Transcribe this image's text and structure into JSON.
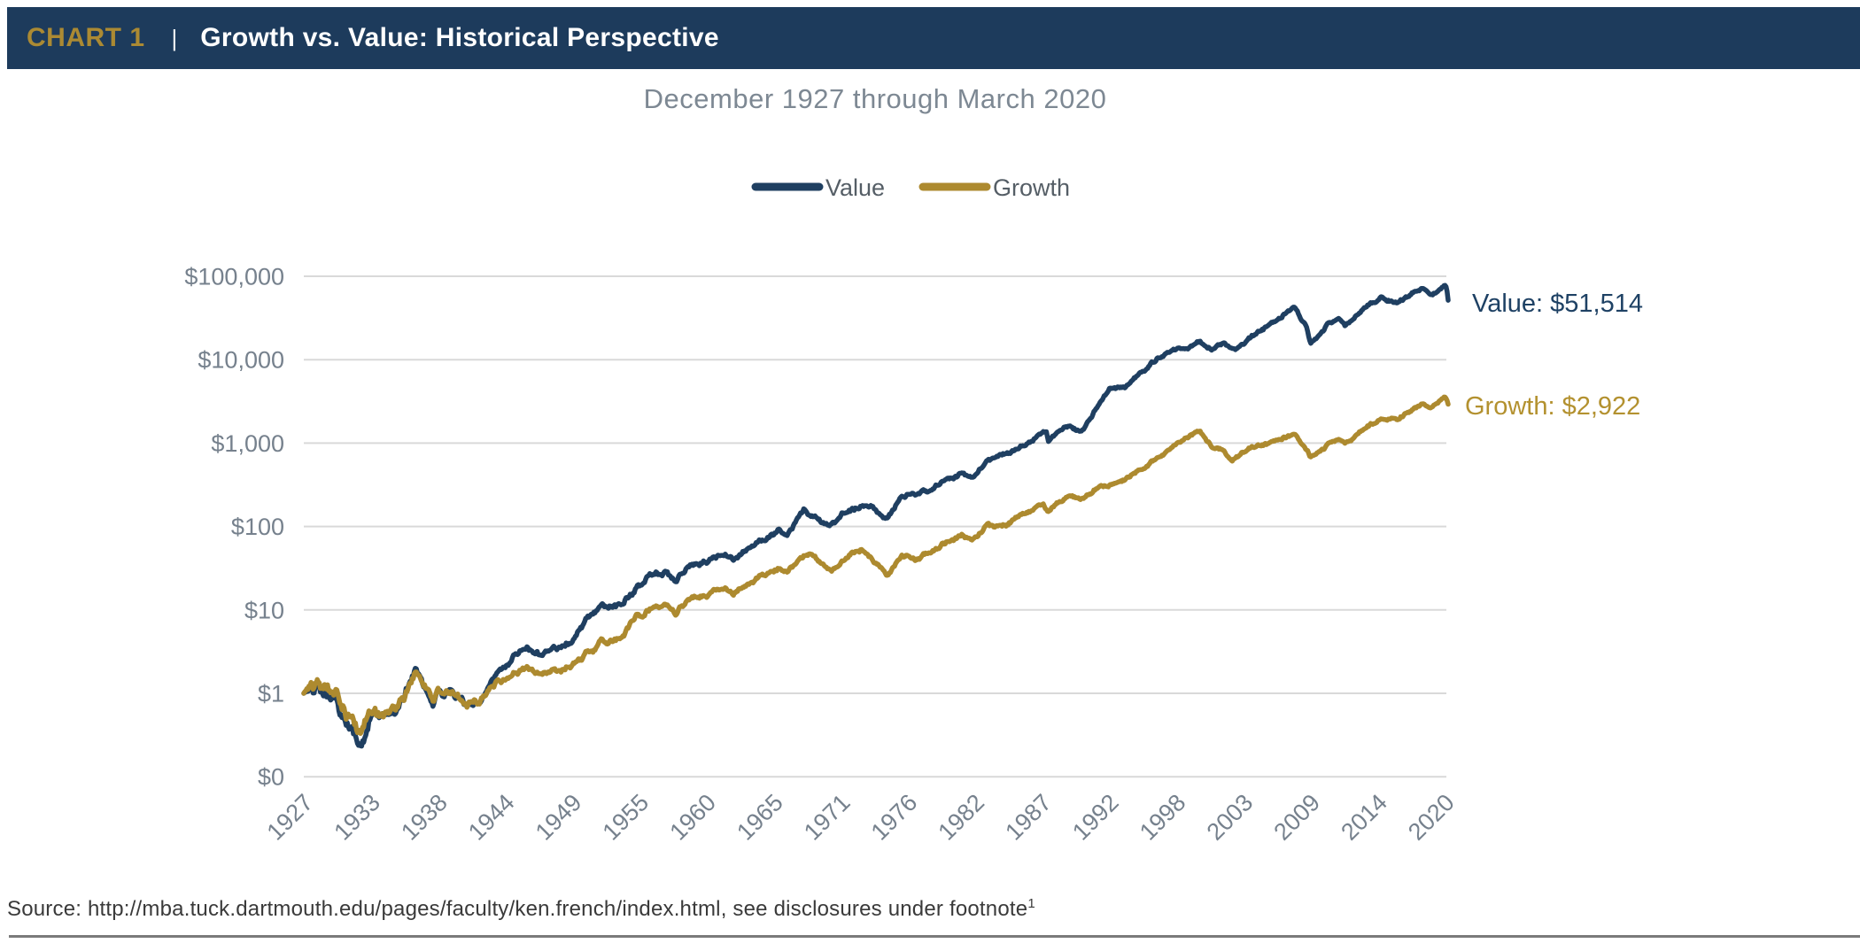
{
  "header": {
    "chart_label": "CHART 1",
    "separator": "|",
    "title": "Growth vs. Value: Historical Perspective"
  },
  "chart": {
    "title": "December 1927 through March 2020",
    "legend": [
      {
        "label": "Value",
        "color": "#1f3f61"
      },
      {
        "label": "Growth",
        "color": "#ad8a2f"
      }
    ],
    "end_labels": {
      "value": "Value: $51,514",
      "growth": "Growth: $2,922"
    }
  },
  "chart_data": {
    "type": "line",
    "title": "December 1927 through March 2020",
    "legend_position": "top-center",
    "grid": "horizontal-only",
    "x_axis": {
      "start_year": 1927.9167,
      "end_year": 2020.25,
      "tick_month_interval": 65,
      "tick_labels": [
        "1927",
        "1933",
        "1938",
        "1944",
        "1949",
        "1955",
        "1960",
        "1965",
        "1971",
        "1976",
        "1982",
        "1987",
        "1992",
        "1998",
        "2003",
        "2009",
        "2014",
        "2020"
      ]
    },
    "y_axis": {
      "scale": "log",
      "tick_labels": [
        "$0",
        "$1",
        "$10",
        "$100",
        "$1,000",
        "$10,000",
        "$100,000"
      ],
      "tick_values": [
        0.1,
        1,
        10,
        100,
        1000,
        10000,
        100000
      ]
    },
    "series": [
      {
        "name": "Value",
        "color": "#1f3f61",
        "final_value": 51514,
        "anchors": [
          [
            1927.92,
            1.0
          ],
          [
            1928.6,
            1.18
          ],
          [
            1929.1,
            1.32
          ],
          [
            1929.8,
            1.12
          ],
          [
            1930.6,
            0.75
          ],
          [
            1931.5,
            0.45
          ],
          [
            1932.0,
            0.32
          ],
          [
            1932.55,
            0.2
          ],
          [
            1933.1,
            0.35
          ],
          [
            1933.45,
            0.6
          ],
          [
            1934.0,
            0.54
          ],
          [
            1934.9,
            0.5
          ],
          [
            1935.8,
            0.8
          ],
          [
            1936.9,
            1.95
          ],
          [
            1937.5,
            1.45
          ],
          [
            1938.3,
            0.8
          ],
          [
            1938.9,
            1.02
          ],
          [
            1939.7,
            0.92
          ],
          [
            1940.5,
            0.78
          ],
          [
            1941.9,
            0.8
          ],
          [
            1942.4,
            0.92
          ],
          [
            1943.4,
            1.6
          ],
          [
            1944.6,
            2.4
          ],
          [
            1945.9,
            3.6
          ],
          [
            1946.8,
            3.0
          ],
          [
            1948.0,
            3.3
          ],
          [
            1949.4,
            4.2
          ],
          [
            1950.8,
            8.0
          ],
          [
            1952.2,
            11.0
          ],
          [
            1953.4,
            11.5
          ],
          [
            1954.8,
            19.0
          ],
          [
            1955.7,
            26.0
          ],
          [
            1957.0,
            28.0
          ],
          [
            1957.9,
            24.0
          ],
          [
            1959.3,
            36.0
          ],
          [
            1960.5,
            38.0
          ],
          [
            1961.9,
            48.0
          ],
          [
            1962.6,
            40.0
          ],
          [
            1964.2,
            60.0
          ],
          [
            1965.5,
            75.0
          ],
          [
            1966.3,
            95.0
          ],
          [
            1966.9,
            80.0
          ],
          [
            1968.3,
            160
          ],
          [
            1970.3,
            100
          ],
          [
            1971.5,
            150
          ],
          [
            1973.2,
            180
          ],
          [
            1973.8,
            170
          ],
          [
            1974.8,
            118
          ],
          [
            1976.0,
            210
          ],
          [
            1976.9,
            250
          ],
          [
            1978.3,
            270
          ],
          [
            1979.6,
            350
          ],
          [
            1981.0,
            420
          ],
          [
            1982.0,
            400
          ],
          [
            1982.4,
            485
          ],
          [
            1983.5,
            670
          ],
          [
            1985.0,
            790
          ],
          [
            1986.8,
            1100
          ],
          [
            1987.8,
            1400
          ],
          [
            1988.0,
            1050
          ],
          [
            1989.3,
            1600
          ],
          [
            1990.7,
            1350
          ],
          [
            1992.0,
            2800
          ],
          [
            1992.9,
            4400
          ],
          [
            1994.3,
            4800
          ],
          [
            1995.5,
            7000
          ],
          [
            1997.0,
            11000
          ],
          [
            1998.5,
            14000
          ],
          [
            1999.2,
            13000
          ],
          [
            2000.2,
            16500
          ],
          [
            2001.1,
            13500
          ],
          [
            2002.2,
            15500
          ],
          [
            2003.1,
            13500
          ],
          [
            2004.6,
            20000
          ],
          [
            2006.0,
            27000
          ],
          [
            2007.8,
            42000
          ],
          [
            2008.8,
            25000
          ],
          [
            2009.15,
            15000
          ],
          [
            2010.5,
            26000
          ],
          [
            2011.6,
            30000
          ],
          [
            2011.95,
            26000
          ],
          [
            2013.5,
            42000
          ],
          [
            2014.9,
            56000
          ],
          [
            2016.05,
            48000
          ],
          [
            2017.3,
            62000
          ],
          [
            2018.1,
            70000
          ],
          [
            2019.0,
            60000
          ],
          [
            2019.95,
            80000
          ],
          [
            2020.13,
            74000
          ],
          [
            2020.25,
            51514
          ]
        ]
      },
      {
        "name": "Growth",
        "color": "#ad8a2f",
        "final_value": 2922,
        "anchors": [
          [
            1927.92,
            1.0
          ],
          [
            1928.8,
            1.32
          ],
          [
            1929.6,
            1.42
          ],
          [
            1930.4,
            1.05
          ],
          [
            1931.5,
            0.6
          ],
          [
            1932.5,
            0.3
          ],
          [
            1933.4,
            0.62
          ],
          [
            1934.0,
            0.58
          ],
          [
            1934.9,
            0.55
          ],
          [
            1935.9,
            0.85
          ],
          [
            1936.9,
            1.85
          ],
          [
            1937.5,
            1.4
          ],
          [
            1938.3,
            0.85
          ],
          [
            1938.9,
            1.05
          ],
          [
            1939.7,
            0.95
          ],
          [
            1940.5,
            0.8
          ],
          [
            1941.9,
            0.78
          ],
          [
            1942.4,
            0.88
          ],
          [
            1943.4,
            1.25
          ],
          [
            1944.6,
            1.55
          ],
          [
            1945.9,
            2.1
          ],
          [
            1946.8,
            1.8
          ],
          [
            1948.0,
            1.85
          ],
          [
            1949.4,
            2.1
          ],
          [
            1950.8,
            3.0
          ],
          [
            1952.2,
            4.2
          ],
          [
            1953.4,
            4.5
          ],
          [
            1954.8,
            9.0
          ],
          [
            1955.7,
            10.5
          ],
          [
            1957.0,
            11.5
          ],
          [
            1957.9,
            9.5
          ],
          [
            1959.3,
            14.5
          ],
          [
            1960.5,
            15.0
          ],
          [
            1961.9,
            19.0
          ],
          [
            1962.6,
            15.5
          ],
          [
            1964.2,
            22.0
          ],
          [
            1965.5,
            28.0
          ],
          [
            1966.3,
            33.0
          ],
          [
            1966.9,
            29.0
          ],
          [
            1968.7,
            50.0
          ],
          [
            1970.5,
            29.0
          ],
          [
            1971.8,
            45.0
          ],
          [
            1972.9,
            54.0
          ],
          [
            1973.8,
            40.0
          ],
          [
            1974.9,
            26.0
          ],
          [
            1976.2,
            44.0
          ],
          [
            1977.5,
            42.0
          ],
          [
            1979.5,
            60.0
          ],
          [
            1981.0,
            75.0
          ],
          [
            1982.0,
            72.0
          ],
          [
            1983.0,
            100
          ],
          [
            1984.5,
            105
          ],
          [
            1985.9,
            140
          ],
          [
            1987.6,
            185
          ],
          [
            1987.9,
            150
          ],
          [
            1989.5,
            230
          ],
          [
            1990.7,
            210
          ],
          [
            1992.0,
            290
          ],
          [
            1993.8,
            340
          ],
          [
            1995.5,
            480
          ],
          [
            1997.0,
            700
          ],
          [
            1998.4,
            1000
          ],
          [
            1999.2,
            1150
          ],
          [
            2000.2,
            1380
          ],
          [
            2001.2,
            900
          ],
          [
            2002.2,
            800
          ],
          [
            2002.8,
            620
          ],
          [
            2004.0,
            850
          ],
          [
            2006.0,
            1000
          ],
          [
            2007.8,
            1290
          ],
          [
            2008.9,
            800
          ],
          [
            2009.15,
            660
          ],
          [
            2010.5,
            950
          ],
          [
            2011.6,
            1100
          ],
          [
            2011.95,
            1000
          ],
          [
            2013.5,
            1500
          ],
          [
            2014.9,
            1950
          ],
          [
            2016.05,
            1900
          ],
          [
            2017.3,
            2500
          ],
          [
            2018.1,
            2900
          ],
          [
            2019.0,
            2700
          ],
          [
            2019.95,
            3600
          ],
          [
            2020.13,
            3400
          ],
          [
            2020.25,
            2922
          ]
        ]
      }
    ]
  },
  "footer": {
    "source": "Source: http://mba.tuck.dartmouth.edu/pages/faculty/ken.french/index.html, see disclosures under footnote",
    "footnote_marker": "1"
  },
  "colors": {
    "header_background": "#1d3b5c",
    "header_accent_gold": "#ab8a33",
    "value_line": "#1f3f61",
    "growth_line": "#ad8a2f",
    "gridline": "#d9d9d9",
    "axis_text": "#76818d",
    "subtitle_text": "#7d8893"
  }
}
